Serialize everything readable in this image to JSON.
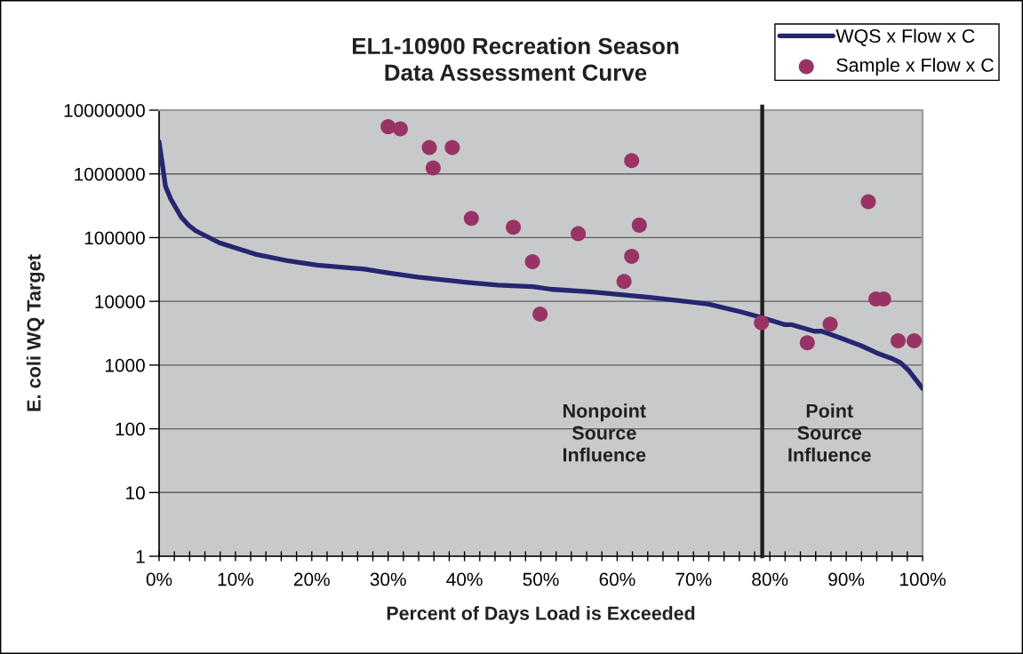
{
  "chart_data": {
    "type": "scatter",
    "title": "EL1-10900 Recreation Season\nData Assessment Curve",
    "xlabel": "Percent of Days Load is Exceeded",
    "ylabel": "E. coli WQ Target",
    "log": "y",
    "grid": "y",
    "legend": "top right",
    "xlim": [
      0,
      100
    ],
    "xticks": [
      {
        "value": 0,
        "label": "0%"
      },
      {
        "value": 2,
        "label": null
      },
      {
        "value": 4,
        "label": null
      },
      {
        "value": 6,
        "label": null
      },
      {
        "value": 8,
        "label": null
      },
      {
        "value": 10,
        "label": "10%"
      },
      {
        "value": 12,
        "label": null
      },
      {
        "value": 14,
        "label": null
      },
      {
        "value": 16,
        "label": null
      },
      {
        "value": 18,
        "label": null
      },
      {
        "value": 20,
        "label": "20%"
      },
      {
        "value": 22,
        "label": null
      },
      {
        "value": 24,
        "label": null
      },
      {
        "value": 26,
        "label": null
      },
      {
        "value": 28,
        "label": null
      },
      {
        "value": 30,
        "label": "30%"
      },
      {
        "value": 32,
        "label": null
      },
      {
        "value": 34,
        "label": null
      },
      {
        "value": 36,
        "label": null
      },
      {
        "value": 38,
        "label": null
      },
      {
        "value": 40,
        "label": "40%"
      },
      {
        "value": 42,
        "label": null
      },
      {
        "value": 44,
        "label": null
      },
      {
        "value": 46,
        "label": null
      },
      {
        "value": 48,
        "label": null
      },
      {
        "value": 50,
        "label": "50%"
      },
      {
        "value": 52,
        "label": null
      },
      {
        "value": 54,
        "label": null
      },
      {
        "value": 56,
        "label": null
      },
      {
        "value": 58,
        "label": null
      },
      {
        "value": 60,
        "label": "60%"
      },
      {
        "value": 62,
        "label": null
      },
      {
        "value": 64,
        "label": null
      },
      {
        "value": 66,
        "label": null
      },
      {
        "value": 68,
        "label": null
      },
      {
        "value": 70,
        "label": "70%"
      },
      {
        "value": 72,
        "label": null
      },
      {
        "value": 74,
        "label": null
      },
      {
        "value": 76,
        "label": null
      },
      {
        "value": 78,
        "label": null
      },
      {
        "value": 80,
        "label": "80%"
      },
      {
        "value": 82,
        "label": null
      },
      {
        "value": 84,
        "label": null
      },
      {
        "value": 86,
        "label": null
      },
      {
        "value": 88,
        "label": null
      },
      {
        "value": 90,
        "label": "90%"
      },
      {
        "value": 92,
        "label": null
      },
      {
        "value": 94,
        "label": null
      },
      {
        "value": 96,
        "label": null
      },
      {
        "value": 98,
        "label": null
      },
      {
        "value": 100,
        "label": "100%"
      }
    ],
    "ylim": [
      1,
      10000000
    ],
    "yticks": [
      1,
      10,
      100,
      1000,
      10000,
      100000,
      1000000,
      10000000
    ],
    "series": [
      {
        "name": "WQS x Flow x C",
        "type": "line",
        "color": "#25266f",
        "line_style": "solid",
        "x": [
          0,
          0.84,
          1.5,
          2.9,
          3.9,
          4.8,
          7.9,
          12.6,
          17.0,
          20.7,
          26.9,
          30.0,
          33.9,
          40.1,
          44.4,
          49.0,
          51.3,
          56.8,
          64.5,
          71.9,
          76.1,
          78.9,
          82.0,
          82.9,
          85.8,
          86.8,
          89.3,
          92.0,
          94.0,
          95.9,
          97.1,
          98.2,
          100
        ],
        "values": [
          3200000,
          640000,
          410000,
          210000,
          155000,
          128000,
          83000,
          55000,
          43000,
          37000,
          32000,
          28000,
          24000,
          20000,
          18000,
          17000,
          15500,
          14000,
          11500,
          9100,
          6900,
          5600,
          4300,
          4300,
          3400,
          3400,
          2650,
          2000,
          1550,
          1280,
          1090,
          820,
          430
        ]
      },
      {
        "name": "Sample x Flow x C",
        "color": "#993366",
        "marker": "circle",
        "x": [
          30.0,
          31.6,
          35.4,
          35.9,
          38.4,
          40.9,
          46.4,
          48.9,
          49.9,
          54.9,
          60.9,
          61.9,
          61.9,
          62.9,
          78.9,
          84.9,
          87.9,
          92.9,
          93.9,
          94.9,
          96.8,
          98.9
        ],
        "values": [
          5500000,
          5100000,
          2600000,
          1240000,
          2600000,
          200000,
          146000,
          42000,
          6300,
          115000,
          20500,
          1620000,
          51000,
          157000,
          4600,
          2240,
          4400,
          365000,
          10900,
          10900,
          2410,
          2410
        ]
      }
    ],
    "ref_lines": [
      {
        "axis": "x",
        "value": 79,
        "color": "#231f20",
        "line_style": "solid"
      }
    ],
    "annotations": [
      "Nonpoint\nSource\nInfluence",
      "Point\nSource\nInfluence"
    ]
  }
}
